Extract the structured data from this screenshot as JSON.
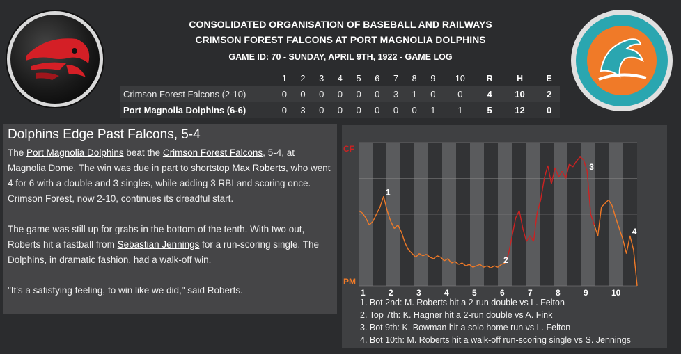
{
  "header": {
    "league": "CONSOLIDATED ORGANISATION OF BASEBALL AND RAILWAYS",
    "matchup": "CRIMSON FOREST FALCONS AT PORT MAGNOLIA DOLPHINS",
    "game_info": "GAME ID: 70 - SUNDAY, APRIL 9TH, 1922 - ",
    "game_log_link": "GAME LOG"
  },
  "colors": {
    "away": "#cc2222",
    "home": "#f07a28",
    "background": "#2b2c2e"
  },
  "linescore": {
    "columns": [
      "1",
      "2",
      "3",
      "4",
      "5",
      "6",
      "7",
      "8",
      "9",
      "10",
      "R",
      "H",
      "E"
    ],
    "rows": [
      {
        "team": "Crimson Forest Falcons (2-10)",
        "values": [
          "0",
          "0",
          "0",
          "0",
          "0",
          "0",
          "3",
          "1",
          "0",
          "0",
          "4",
          "10",
          "2"
        ]
      },
      {
        "team": "Port Magnolia Dolphins (6-6)",
        "values": [
          "0",
          "3",
          "0",
          "0",
          "0",
          "0",
          "0",
          "0",
          "1",
          "1",
          "5",
          "12",
          "0"
        ]
      }
    ]
  },
  "story": {
    "title": "Dolphins Edge Past Falcons, 5-4",
    "p1_a": "The ",
    "p1_link1": "Port Magnolia Dolphins",
    "p1_b": " beat the ",
    "p1_link2": "Crimson Forest Falcons",
    "p1_c": ", 5-4, at Magnolia Dome. The win was due in part to shortstop ",
    "p1_link3": "Max Roberts",
    "p1_d": ", who went 4 for 6 with a double and 3 singles, while adding 3 RBI and scoring once. Crimson Forest, now 2-10, continues its dreadful start.",
    "p2_a": "The game was still up for grabs in the bottom of the tenth. With two out, Roberts hit a fastball from ",
    "p2_link": "Sebastian Jennings",
    "p2_b": " for a run-scoring single. The Dolphins, in dramatic fashion, had a walk-off win.",
    "p3": "\"It's a satisfying feeling, to win like we did,\" said Roberts."
  },
  "chart_data": {
    "type": "line",
    "top_label": "CF",
    "bottom_label": "PM",
    "innings": [
      "1",
      "2",
      "3",
      "4",
      "5",
      "6",
      "7",
      "8",
      "9",
      "10"
    ],
    "ylim": [
      -1,
      1
    ],
    "values": [
      0.05,
      0.02,
      -0.05,
      -0.15,
      -0.1,
      0.0,
      0.1,
      0.25,
      0.05,
      -0.1,
      -0.2,
      -0.15,
      -0.25,
      -0.4,
      -0.5,
      -0.55,
      -0.6,
      -0.55,
      -0.58,
      -0.56,
      -0.6,
      -0.62,
      -0.58,
      -0.6,
      -0.65,
      -0.62,
      -0.68,
      -0.66,
      -0.7,
      -0.68,
      -0.72,
      -0.7,
      -0.74,
      -0.72,
      -0.7,
      -0.74,
      -0.72,
      -0.75,
      -0.72,
      -0.74,
      -0.7,
      -0.68,
      -0.55,
      -0.3,
      -0.05,
      0.05,
      -0.2,
      -0.38,
      -0.3,
      -0.38,
      0.02,
      0.2,
      0.5,
      0.68,
      0.42,
      0.65,
      0.52,
      0.6,
      0.5,
      0.7,
      0.66,
      0.74,
      0.8,
      0.76,
      0.6,
      0.0,
      -0.15,
      -0.3,
      0.1,
      0.15,
      0.2,
      0.12,
      -0.05,
      -0.2,
      -0.35,
      -0.55,
      -0.3,
      -0.5,
      -1.0
    ],
    "home_from_index": 48,
    "markers": [
      {
        "label": "1",
        "index": 7
      },
      {
        "label": "2",
        "index": 40
      },
      {
        "label": "3",
        "index": 64
      },
      {
        "label": "4",
        "index": 76
      }
    ],
    "events": [
      "1. Bot 2nd: M. Roberts hit a 2-run double vs L. Felton",
      "2. Top 7th: K. Hagner hit a 2-run double vs A. Fink",
      "3. Bot 9th: K. Bowman hit a solo home run vs L. Felton",
      "4. Bot 10th: M. Roberts hit a walk-off run-scoring single vs S. Jennings"
    ]
  }
}
